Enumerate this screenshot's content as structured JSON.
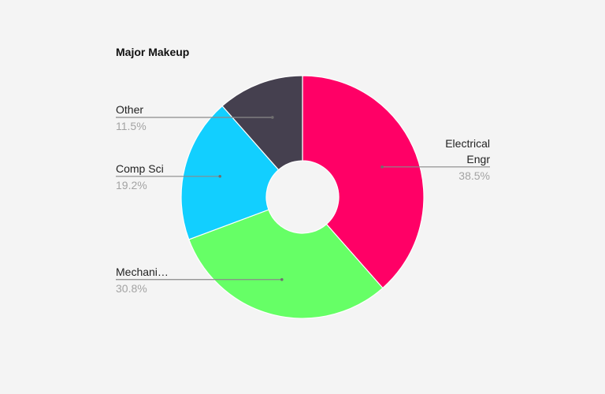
{
  "chart_data": {
    "type": "pie",
    "title": "Major Makeup",
    "slices": [
      {
        "name": "Electrical Engr",
        "label_lines": [
          "Electrical",
          "Engr"
        ],
        "value": 38.5,
        "percent_label": "38.5%",
        "color": "#ff0066"
      },
      {
        "name": "Mechanical",
        "label_lines": [
          "Mechani…"
        ],
        "value": 30.8,
        "percent_label": "30.8%",
        "color": "#66ff66"
      },
      {
        "name": "Comp Sci",
        "label_lines": [
          "Comp Sci"
        ],
        "value": 19.2,
        "percent_label": "19.2%",
        "color": "#12cfff"
      },
      {
        "name": "Other",
        "label_lines": [
          "Other"
        ],
        "value": 11.5,
        "percent_label": "11.5%",
        "color": "#45404f"
      }
    ]
  }
}
